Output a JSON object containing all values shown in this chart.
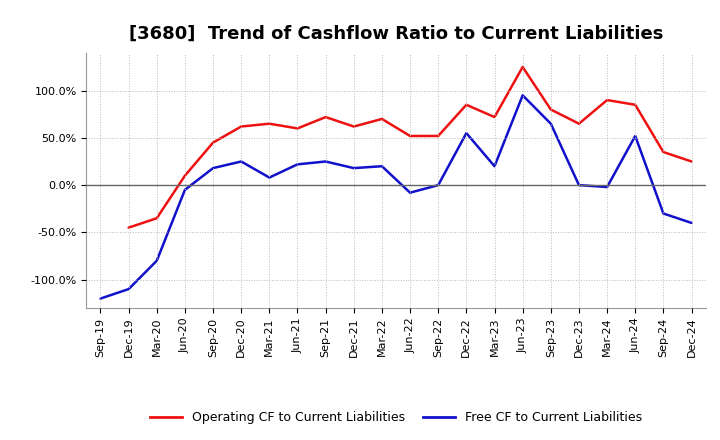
{
  "title": "[3680]  Trend of Cashflow Ratio to Current Liabilities",
  "x_labels": [
    "Sep-19",
    "Dec-19",
    "Mar-20",
    "Jun-20",
    "Sep-20",
    "Dec-20",
    "Mar-21",
    "Jun-21",
    "Sep-21",
    "Dec-21",
    "Mar-22",
    "Jun-22",
    "Sep-22",
    "Dec-22",
    "Mar-23",
    "Jun-23",
    "Sep-23",
    "Dec-23",
    "Mar-24",
    "Jun-24",
    "Sep-24",
    "Dec-24"
  ],
  "operating_cf": [
    null,
    -45,
    -35,
    10,
    45,
    62,
    65,
    60,
    72,
    62,
    70,
    52,
    52,
    85,
    72,
    125,
    80,
    65,
    90,
    85,
    35,
    25
  ],
  "free_cf": [
    -120,
    -110,
    -80,
    -5,
    18,
    25,
    8,
    22,
    25,
    18,
    20,
    -8,
    0,
    55,
    20,
    95,
    65,
    0,
    -2,
    52,
    -30,
    -40
  ],
  "ylim": [
    -130,
    140
  ],
  "yticks": [
    -100,
    -50,
    0,
    50,
    100
  ],
  "operating_color": "#EE1111",
  "free_color": "#1111CC",
  "background_color": "#FFFFFF",
  "grid_color": "#BBBBBB",
  "legend_op": "Operating CF to Current Liabilities",
  "legend_free": "Free CF to Current Liabilities",
  "title_fontsize": 13,
  "tick_fontsize": 8,
  "legend_fontsize": 9
}
